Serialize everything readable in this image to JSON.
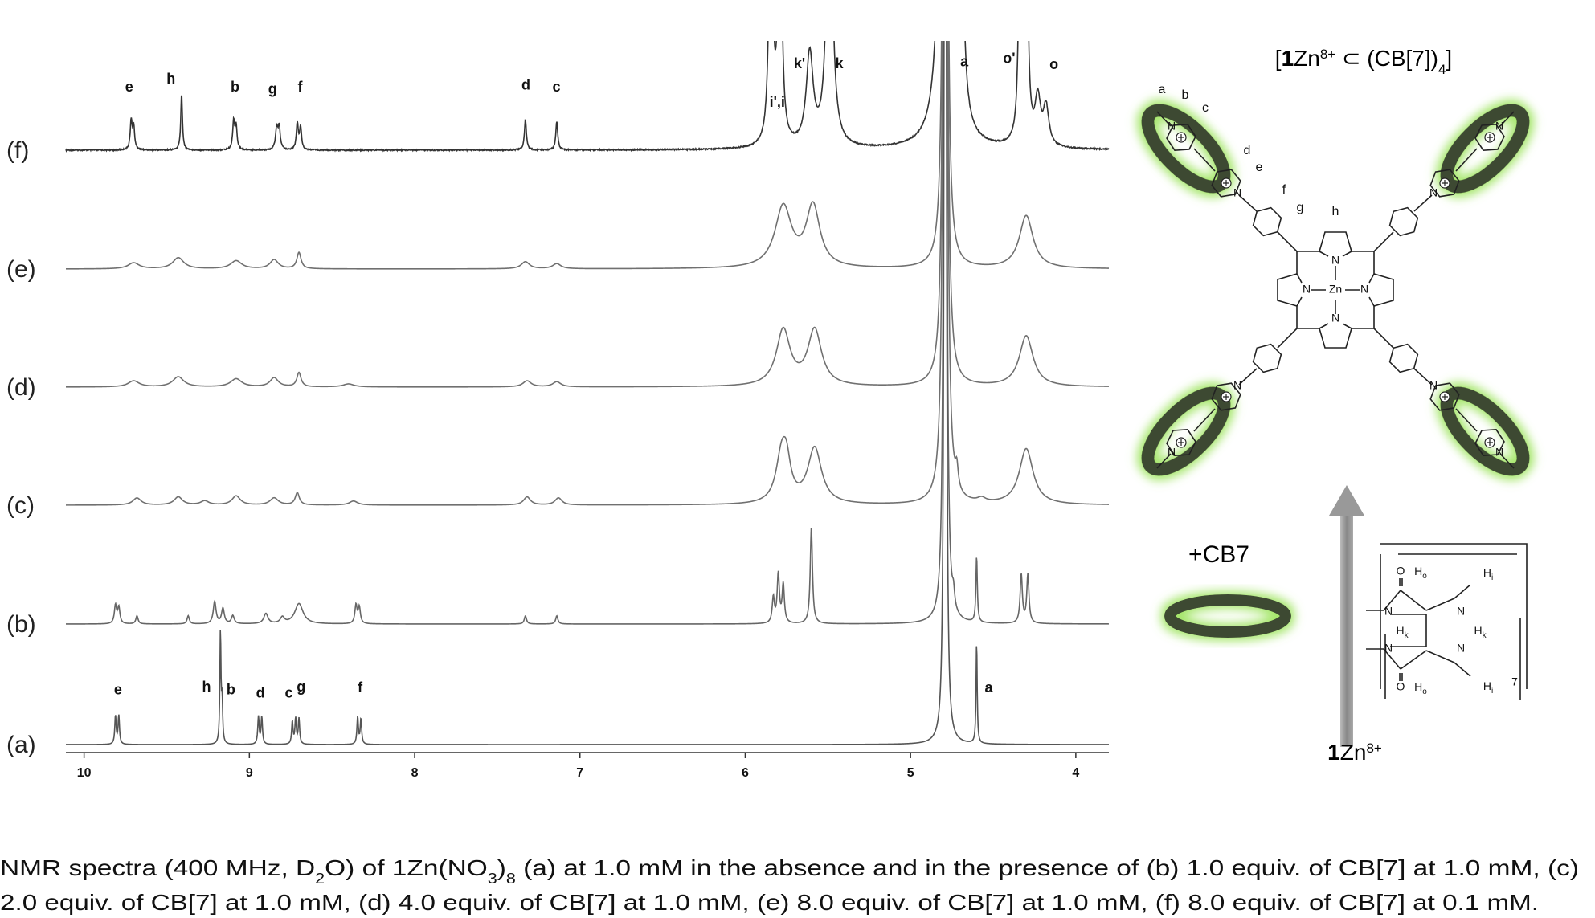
{
  "figure": {
    "xaxis": {
      "xlim": [
        10.11,
        3.8
      ],
      "xticks": [
        10,
        9,
        8,
        7,
        6,
        5,
        4
      ]
    },
    "spectra": [
      {
        "label": "(f)",
        "peaks": [
          [
            9.715,
            28,
            0.007
          ],
          [
            9.7,
            22,
            0.007
          ],
          [
            9.41,
            55,
            0.006
          ],
          [
            9.095,
            28,
            0.007
          ],
          [
            9.08,
            22,
            0.007
          ],
          [
            8.835,
            20,
            0.008
          ],
          [
            8.82,
            22,
            0.008
          ],
          [
            8.71,
            26,
            0.007
          ],
          [
            8.69,
            22,
            0.007
          ],
          [
            7.33,
            30,
            0.007
          ],
          [
            7.14,
            28,
            0.007
          ],
          [
            5.845,
            300,
            0.012
          ],
          [
            5.79,
            300,
            0.012
          ],
          [
            5.61,
            90,
            0.025
          ],
          [
            5.49,
            300,
            0.02
          ],
          [
            4.79,
            3000,
            0.012
          ],
          [
            4.7,
            400,
            0.015
          ],
          [
            4.335,
            300,
            0.01
          ],
          [
            4.3,
            300,
            0.01
          ],
          [
            4.23,
            45,
            0.02
          ],
          [
            4.18,
            38,
            0.02
          ]
        ],
        "peak_labels": [
          "e",
          "h",
          "b",
          "g",
          "f",
          "d",
          "c",
          "i',i",
          "k'",
          "k",
          "a",
          "o'",
          "o"
        ]
      },
      {
        "label": "(e)",
        "peaks": [
          [
            9.7,
            6,
            0.04
          ],
          [
            9.43,
            11,
            0.04
          ],
          [
            9.08,
            8,
            0.04
          ],
          [
            8.85,
            9,
            0.03
          ],
          [
            8.7,
            16,
            0.015
          ],
          [
            7.33,
            7,
            0.03
          ],
          [
            7.14,
            5,
            0.03
          ],
          [
            5.77,
            60,
            0.06
          ],
          [
            5.59,
            60,
            0.05
          ],
          [
            4.79,
            2000,
            0.008
          ],
          [
            4.3,
            52,
            0.05
          ]
        ]
      },
      {
        "label": "(d)",
        "peaks": [
          [
            9.7,
            6,
            0.04
          ],
          [
            9.43,
            10,
            0.04
          ],
          [
            9.08,
            8,
            0.04
          ],
          [
            8.85,
            9,
            0.03
          ],
          [
            8.7,
            14,
            0.015
          ],
          [
            8.4,
            3,
            0.04
          ],
          [
            7.32,
            6,
            0.03
          ],
          [
            7.14,
            5,
            0.03
          ],
          [
            5.77,
            55,
            0.05
          ],
          [
            5.58,
            55,
            0.05
          ],
          [
            4.79,
            2000,
            0.008
          ],
          [
            4.3,
            50,
            0.05
          ]
        ]
      },
      {
        "label": "(c)",
        "peaks": [
          [
            9.68,
            7,
            0.03
          ],
          [
            9.43,
            8,
            0.03
          ],
          [
            9.27,
            4,
            0.03
          ],
          [
            9.08,
            9,
            0.03
          ],
          [
            8.85,
            7,
            0.03
          ],
          [
            8.71,
            12,
            0.015
          ],
          [
            8.37,
            4,
            0.03
          ],
          [
            7.32,
            8,
            0.025
          ],
          [
            7.13,
            7,
            0.025
          ],
          [
            5.78,
            45,
            0.04
          ],
          [
            5.75,
            30,
            0.03
          ],
          [
            5.58,
            55,
            0.05
          ],
          [
            4.79,
            2000,
            0.008
          ],
          [
            4.72,
            20,
            0.01
          ],
          [
            4.57,
            4,
            0.03
          ],
          [
            4.3,
            55,
            0.05
          ]
        ]
      },
      {
        "label": "(b)",
        "peaks": [
          [
            9.81,
            18,
            0.008
          ],
          [
            9.79,
            16,
            0.008
          ],
          [
            9.68,
            8,
            0.008
          ],
          [
            9.37,
            8,
            0.008
          ],
          [
            9.21,
            22,
            0.01
          ],
          [
            9.16,
            15,
            0.01
          ],
          [
            9.1,
            8,
            0.01
          ],
          [
            8.9,
            10,
            0.015
          ],
          [
            8.8,
            6,
            0.015
          ],
          [
            8.7,
            20,
            0.03
          ],
          [
            8.355,
            18,
            0.008
          ],
          [
            8.335,
            16,
            0.008
          ],
          [
            7.33,
            8,
            0.008
          ],
          [
            7.14,
            8,
            0.008
          ],
          [
            5.83,
            25,
            0.008
          ],
          [
            5.8,
            48,
            0.008
          ],
          [
            5.77,
            38,
            0.008
          ],
          [
            5.6,
            95,
            0.008
          ],
          [
            4.79,
            2000,
            0.006
          ],
          [
            4.74,
            15,
            0.008
          ],
          [
            4.6,
            65,
            0.005
          ],
          [
            4.33,
            48,
            0.008
          ],
          [
            4.29,
            48,
            0.008
          ]
        ]
      },
      {
        "label": "(a)",
        "peaks": [
          [
            9.81,
            28,
            0.005
          ],
          [
            9.79,
            28,
            0.005
          ],
          [
            9.175,
            110,
            0.004
          ],
          [
            9.165,
            40,
            0.004
          ],
          [
            8.945,
            27,
            0.005
          ],
          [
            8.925,
            27,
            0.005
          ],
          [
            8.74,
            22,
            0.005
          ],
          [
            8.72,
            25,
            0.005
          ],
          [
            8.7,
            25,
            0.005
          ],
          [
            8.345,
            27,
            0.005
          ],
          [
            8.325,
            25,
            0.005
          ],
          [
            4.79,
            3000,
            0.004
          ],
          [
            4.6,
            100,
            0.004
          ]
        ],
        "peak_labels": [
          "e",
          "h",
          "b",
          "d",
          "c",
          "g",
          "f",
          "a"
        ]
      }
    ]
  },
  "structure": {
    "complex_title": [
      "[",
      "1",
      "Zn",
      "8+",
      " ⊂ (CB[7])",
      "4",
      "]"
    ],
    "atoms": {
      "N": "N",
      "Zn": "Zn",
      "O": "O",
      "H": "H"
    },
    "proton_labels": [
      "a",
      "b",
      "c",
      "d",
      "e",
      "f",
      "g",
      "h"
    ],
    "cb7_sublabels": [
      "o",
      "i",
      "k"
    ],
    "cb7_repeat": "7",
    "guest_label": "+CB7",
    "host_label": [
      "1",
      "Zn",
      "8+"
    ]
  },
  "caption": {
    "line1": [
      "NMR spectra (400 MHz, D",
      "2",
      "O) of 1Zn(NO",
      "3",
      ")",
      "8",
      " (a) at 1.0 mM in the absence and in the presence of (b) 1.0 equiv. of CB[7] at 1.0 mM, (c)"
    ],
    "line2": "2.0 equiv. of CB[7] at 1.0 mM, (d) 4.0 equiv. of CB[7] at 1.0 mM, (e) 8.0 equiv. of CB[7] at 1.0 mM, (f) 8.0 equiv. of CB[7] at 0.1 mM."
  }
}
